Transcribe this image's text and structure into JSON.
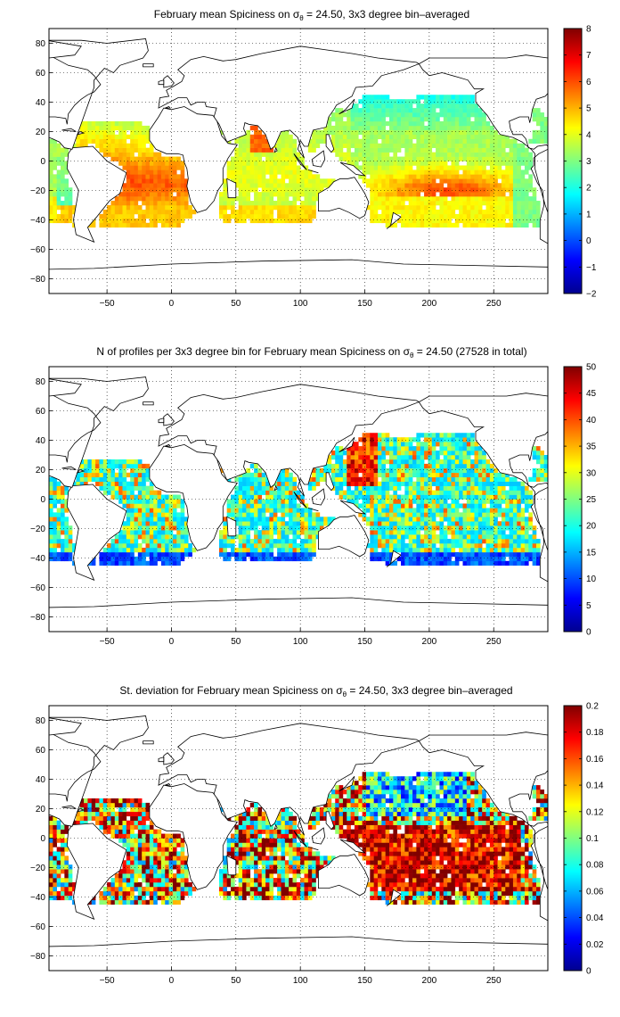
{
  "colormap": "jet",
  "colors": {
    "background": "#ffffff",
    "land": "#ffffff",
    "coastline": "#000000",
    "grid": "#000000"
  },
  "chart_data": [
    {
      "type": "heatmap",
      "title_parts": [
        "February mean Spiciness on ",
        "σ",
        "θ",
        " = 24.50, 3x3 degree bin–averaged"
      ],
      "xlim": [
        -95,
        292
      ],
      "ylim": [
        -90,
        90
      ],
      "x_ticks": [
        -50,
        0,
        50,
        100,
        150,
        200,
        250
      ],
      "y_ticks": [
        80,
        60,
        40,
        20,
        0,
        -20,
        -40,
        -60,
        -80
      ],
      "colorbar": {
        "min": -2,
        "max": 8,
        "ticks": [
          8,
          7,
          6,
          5,
          4,
          3,
          2,
          1,
          0,
          -1,
          -2
        ]
      },
      "field": "spice",
      "grid_lines": "dotted"
    },
    {
      "type": "heatmap",
      "title_parts": [
        "N of profiles per 3x3 degree bin for February mean Spiciness on ",
        "σ",
        "θ",
        " = 24.50 (27528 in total)"
      ],
      "xlim": [
        -95,
        292
      ],
      "ylim": [
        -90,
        90
      ],
      "x_ticks": [
        -50,
        0,
        50,
        100,
        150,
        200,
        250
      ],
      "y_ticks": [
        80,
        60,
        40,
        20,
        0,
        -20,
        -40,
        -60,
        -80
      ],
      "colorbar": {
        "min": 0,
        "max": 50,
        "ticks": [
          50,
          45,
          40,
          35,
          30,
          25,
          20,
          15,
          10,
          5,
          0
        ]
      },
      "field": "count",
      "total_profiles": 27528,
      "grid_lines": "dotted"
    },
    {
      "type": "heatmap",
      "title_parts": [
        "St. deviation for February mean Spiciness on ",
        "σ",
        "θ",
        " = 24.50, 3x3 degree bin–averaged"
      ],
      "xlim": [
        -95,
        292
      ],
      "ylim": [
        -90,
        90
      ],
      "x_ticks": [
        -50,
        0,
        50,
        100,
        150,
        200,
        250
      ],
      "y_ticks": [
        80,
        60,
        40,
        20,
        0,
        -20,
        -40,
        -60,
        -80
      ],
      "colorbar": {
        "min": 0,
        "max": 0.2,
        "ticks": [
          0.2,
          0.18,
          0.16,
          0.14,
          0.12,
          0.1,
          0.08,
          0.06,
          0.04,
          0.02,
          0
        ]
      },
      "field": "std",
      "grid_lines": "dotted"
    }
  ]
}
